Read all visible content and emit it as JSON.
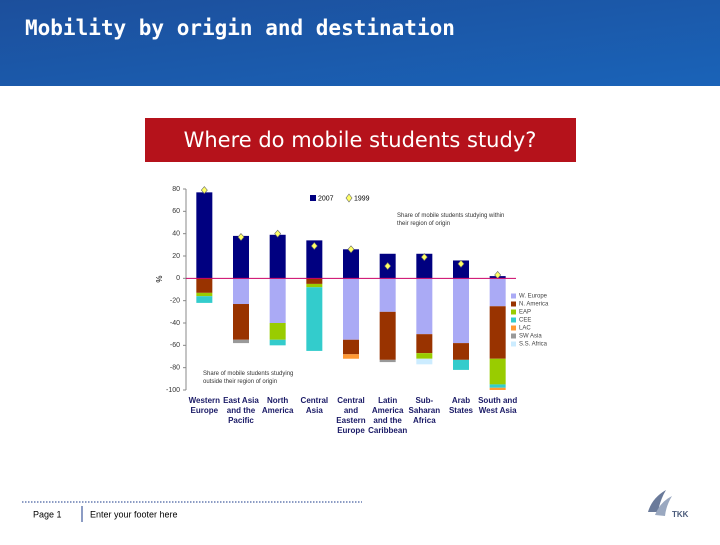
{
  "slide": {
    "title": "Mobility by origin and destination",
    "banner": "Where do mobile students study?",
    "footer_page": "Page 1",
    "footer_text": "Enter your footer here",
    "logo": "TKK"
  },
  "chart_data": {
    "type": "bar",
    "categories": [
      "Western Europe",
      "East Asia and the Pacific",
      "North America",
      "Central Asia",
      "Central and Eastern Europe",
      "Latin America and the Caribbean",
      "Sub-Saharan Africa",
      "Arab States",
      "South and West Asia"
    ],
    "y_label": "%",
    "ylim": [
      -100,
      80
    ],
    "yticks": [
      80,
      60,
      40,
      20,
      0,
      -20,
      -40,
      -60,
      -80,
      -100
    ],
    "annotations": [
      "Share of mobile students studying within their region of origin",
      "Share of mobile students studying outside their region of origin"
    ],
    "series": [
      {
        "name": "2007",
        "style": "bar",
        "color": "#000080",
        "values": [
          77,
          38,
          39,
          34,
          26,
          22,
          22,
          16,
          2
        ]
      },
      {
        "name": "1999",
        "style": "diamond",
        "color": "#ffff66",
        "values": [
          79,
          37,
          40,
          29,
          26,
          11,
          19,
          13,
          3
        ]
      },
      {
        "name": "W. Europe",
        "style": "stacked",
        "color": "#aaaaf5",
        "values": [
          null,
          -23,
          -40,
          null,
          -55,
          -30,
          -50,
          -58,
          -25
        ]
      },
      {
        "name": "N. America",
        "style": "stacked",
        "color": "#993300",
        "values": [
          -13,
          -32,
          null,
          -5,
          -13,
          -43,
          -17,
          -15,
          -47
        ]
      },
      {
        "name": "EAP",
        "style": "stacked",
        "color": "#99cc00",
        "values": [
          -3,
          null,
          -15,
          -3,
          null,
          null,
          -5,
          null,
          -23
        ]
      },
      {
        "name": "CEE",
        "style": "stacked",
        "color": "#33cccc",
        "values": [
          -6,
          null,
          -5,
          -57,
          null,
          null,
          null,
          -9,
          -3
        ]
      },
      {
        "name": "LAC",
        "style": "stacked",
        "color": "#ff9933",
        "values": [
          null,
          null,
          null,
          null,
          -4,
          null,
          null,
          null,
          -2
        ]
      },
      {
        "name": "SW Asia",
        "style": "stacked",
        "color": "#999999",
        "values": [
          null,
          -3,
          null,
          null,
          null,
          -2,
          null,
          null,
          null
        ]
      },
      {
        "name": "S.S. Africa",
        "style": "stacked",
        "color": "#ccecff",
        "values": [
          null,
          null,
          null,
          null,
          null,
          null,
          -5,
          null,
          null
        ]
      }
    ]
  }
}
